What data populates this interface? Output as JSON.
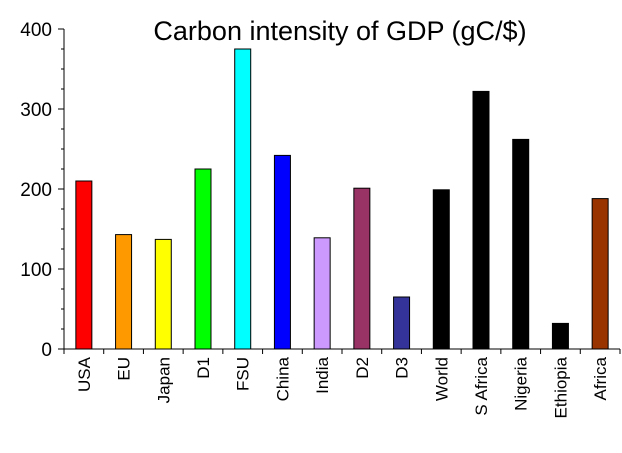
{
  "chart_data": {
    "type": "bar",
    "title": "Carbon intensity of GDP (gC/$)",
    "xlabel": "",
    "ylabel": "",
    "ylim": [
      0,
      400
    ],
    "yticks": [
      0,
      100,
      200,
      300,
      400
    ],
    "yticks_labels": [
      "0",
      "100",
      "200",
      "300",
      "400"
    ],
    "grid": false,
    "legend": "none",
    "categories": [
      "USA",
      "EU",
      "Japan",
      "D1",
      "FSU",
      "China",
      "India",
      "D2",
      "D3",
      "World",
      "S Africa",
      "Nigeria",
      "Ethiopia",
      "Africa"
    ],
    "values": [
      210,
      143,
      137,
      225,
      375,
      242,
      139,
      201,
      65,
      199,
      322,
      262,
      32,
      188
    ],
    "colors": [
      "#ff0000",
      "#ff9900",
      "#ffff00",
      "#00ff00",
      "#00ffff",
      "#0000ff",
      "#cc99ff",
      "#993366",
      "#333399",
      "#000000",
      "#000000",
      "#000000",
      "#000000",
      "#993300"
    ]
  }
}
